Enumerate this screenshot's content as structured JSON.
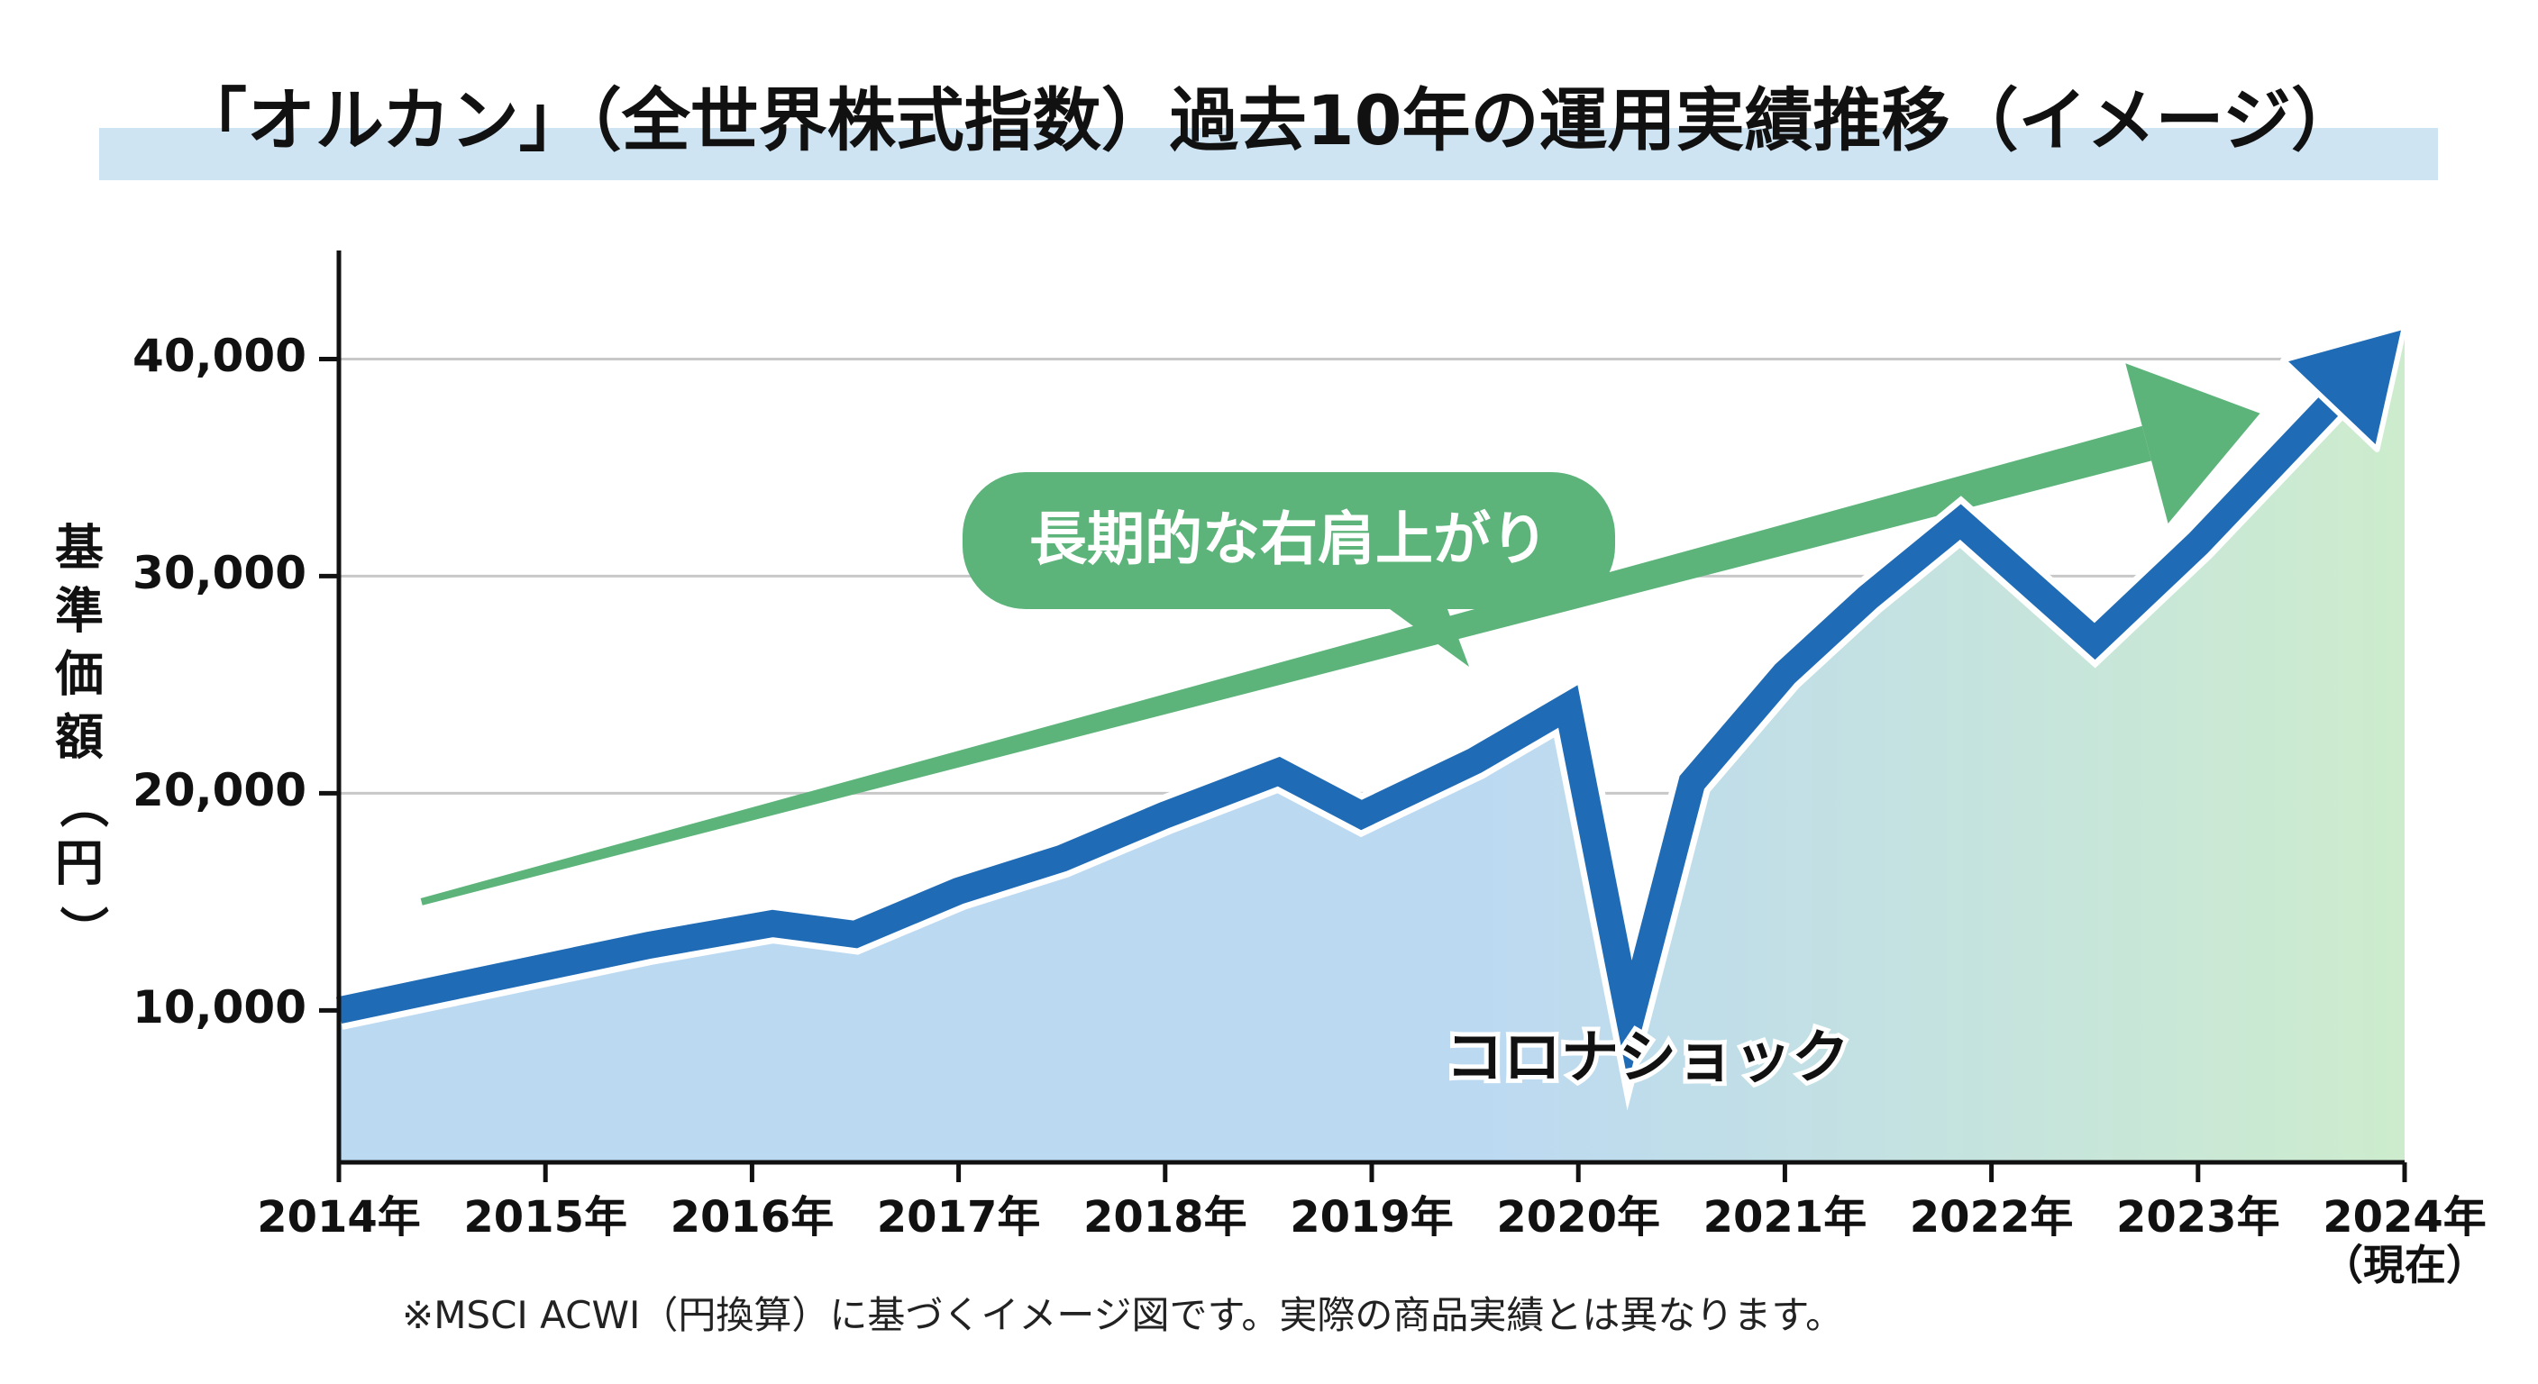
{
  "colors": {
    "title_band": "#cfe4f3",
    "line": "#1f6bb5",
    "area_start": "#bcd9f2",
    "area_end": "#cdeccd",
    "trend_arrow": "#5cb47a",
    "callout_bg": "#5cb47a",
    "callout_text": "#ffffff",
    "grid": "#c8c8c8",
    "axis": "#111111"
  },
  "chart_data": {
    "type": "line",
    "title": "「オルカン」（全世界株式指数）過去10年の運用実績推移（イメージ）",
    "xlabel": "",
    "ylabel": "基準価額（円）",
    "x": [
      2014.0,
      2014.5,
      2015.0,
      2015.5,
      2016.1,
      2016.5,
      2017.0,
      2017.5,
      2018.0,
      2018.55,
      2018.95,
      2019.5,
      2019.95,
      2020.25,
      2020.55,
      2021.0,
      2021.4,
      2021.85,
      2022.5,
      2023.0,
      2023.5,
      2024.0
    ],
    "y": [
      10000,
      11000,
      12000,
      13000,
      14000,
      13500,
      15500,
      17000,
      19000,
      21000,
      19000,
      21500,
      24000,
      9500,
      20500,
      25500,
      29000,
      32500,
      27000,
      31500,
      36500,
      41500
    ],
    "xlim": [
      2014,
      2024
    ],
    "ylim": [
      3000,
      45000
    ],
    "ytick_values": [
      10000,
      20000,
      30000,
      40000
    ],
    "ytick_labels": [
      "10,000",
      "20,000",
      "30,000",
      "40,000"
    ],
    "xtick_values": [
      2014,
      2015,
      2016,
      2017,
      2018,
      2019,
      2020,
      2021,
      2022,
      2023,
      2024
    ],
    "xtick_labels": [
      "2014年",
      "2015年",
      "2016年",
      "2017年",
      "2018年",
      "2019年",
      "2020年",
      "2021年",
      "2022年",
      "2023年",
      "2024年"
    ],
    "xtick_sublabel_last": "（現在）",
    "grid": true,
    "annotations": {
      "trend_label": "長期的な右肩上がり",
      "dip_label": "コロナショック"
    },
    "footnote": "※MSCI ACWI（円換算）に基づくイメージ図です。実際の商品実績とは異なります。"
  }
}
